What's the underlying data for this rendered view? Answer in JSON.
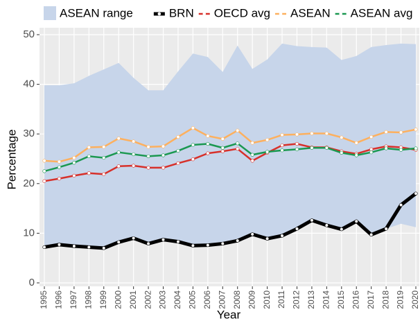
{
  "chart_data": {
    "type": "line",
    "x_label": "Year",
    "y_label": "Percentage",
    "categories": [
      "1995",
      "1996",
      "1997",
      "1998",
      "1999",
      "2000",
      "2001",
      "2002",
      "2003",
      "2004",
      "2005",
      "2006",
      "2007",
      "2008",
      "2009",
      "2010",
      "2011",
      "2012",
      "2013",
      "2014",
      "2015",
      "2016",
      "2017",
      "2018",
      "2019",
      "2020"
    ],
    "ylim": [
      0,
      50
    ],
    "yticks": [
      0,
      10,
      20,
      30,
      40,
      50
    ],
    "grid": true,
    "legend": "top",
    "range": {
      "name": "ASEAN range",
      "color": "#c7d5ea",
      "upper": [
        39.8,
        39.8,
        40.2,
        41.7,
        43.0,
        44.3,
        41.3,
        38.8,
        38.8,
        42.6,
        46.2,
        45.5,
        42.5,
        47.8,
        43.1,
        45.0,
        48.2,
        47.7,
        47.5,
        47.4,
        44.9,
        45.7,
        47.5,
        47.9,
        48.2,
        48.1
      ],
      "lower": [
        7.2,
        7.7,
        7.4,
        7.2,
        7.0,
        8.2,
        9.0,
        7.9,
        8.7,
        8.3,
        7.5,
        7.6,
        7.9,
        8.5,
        9.8,
        8.9,
        9.5,
        10.9,
        12.6,
        11.6,
        10.8,
        12.4,
        9.7,
        10.9,
        11.9,
        11.2
      ]
    },
    "series": [
      {
        "name": "BRN",
        "color": "#000000",
        "values": [
          7.2,
          7.7,
          7.4,
          7.2,
          7.0,
          8.2,
          9.0,
          7.9,
          8.7,
          8.3,
          7.5,
          7.6,
          7.9,
          8.5,
          9.8,
          8.9,
          9.5,
          10.9,
          12.6,
          11.6,
          10.8,
          12.4,
          9.7,
          10.9,
          15.7,
          18.0
        ]
      },
      {
        "name": "OECD avg",
        "color": "#d7302a",
        "values": [
          20.5,
          21.0,
          21.6,
          22.1,
          21.9,
          23.5,
          23.6,
          23.2,
          23.2,
          24.1,
          24.9,
          26.1,
          26.5,
          27.0,
          24.6,
          26.2,
          27.7,
          28.0,
          27.3,
          27.3,
          26.5,
          26.0,
          26.9,
          27.5,
          27.3,
          26.8
        ]
      },
      {
        "name": "ASEAN",
        "color": "#fdb05e",
        "values": [
          24.6,
          24.4,
          25.2,
          27.3,
          27.4,
          29.1,
          28.5,
          27.4,
          27.5,
          29.4,
          31.2,
          29.6,
          29.0,
          30.7,
          28.2,
          28.8,
          29.8,
          29.9,
          30.1,
          30.1,
          29.3,
          28.2,
          29.4,
          30.4,
          30.3,
          30.9
        ]
      },
      {
        "name": "ASEAN avg",
        "color": "#1a9850",
        "values": [
          22.5,
          23.3,
          24.2,
          25.5,
          25.2,
          26.3,
          25.9,
          25.5,
          25.7,
          26.6,
          27.8,
          28.0,
          27.2,
          28.1,
          25.8,
          26.4,
          26.7,
          26.9,
          27.2,
          27.2,
          26.2,
          25.7,
          26.3,
          27.1,
          26.8,
          27.1
        ]
      }
    ]
  }
}
